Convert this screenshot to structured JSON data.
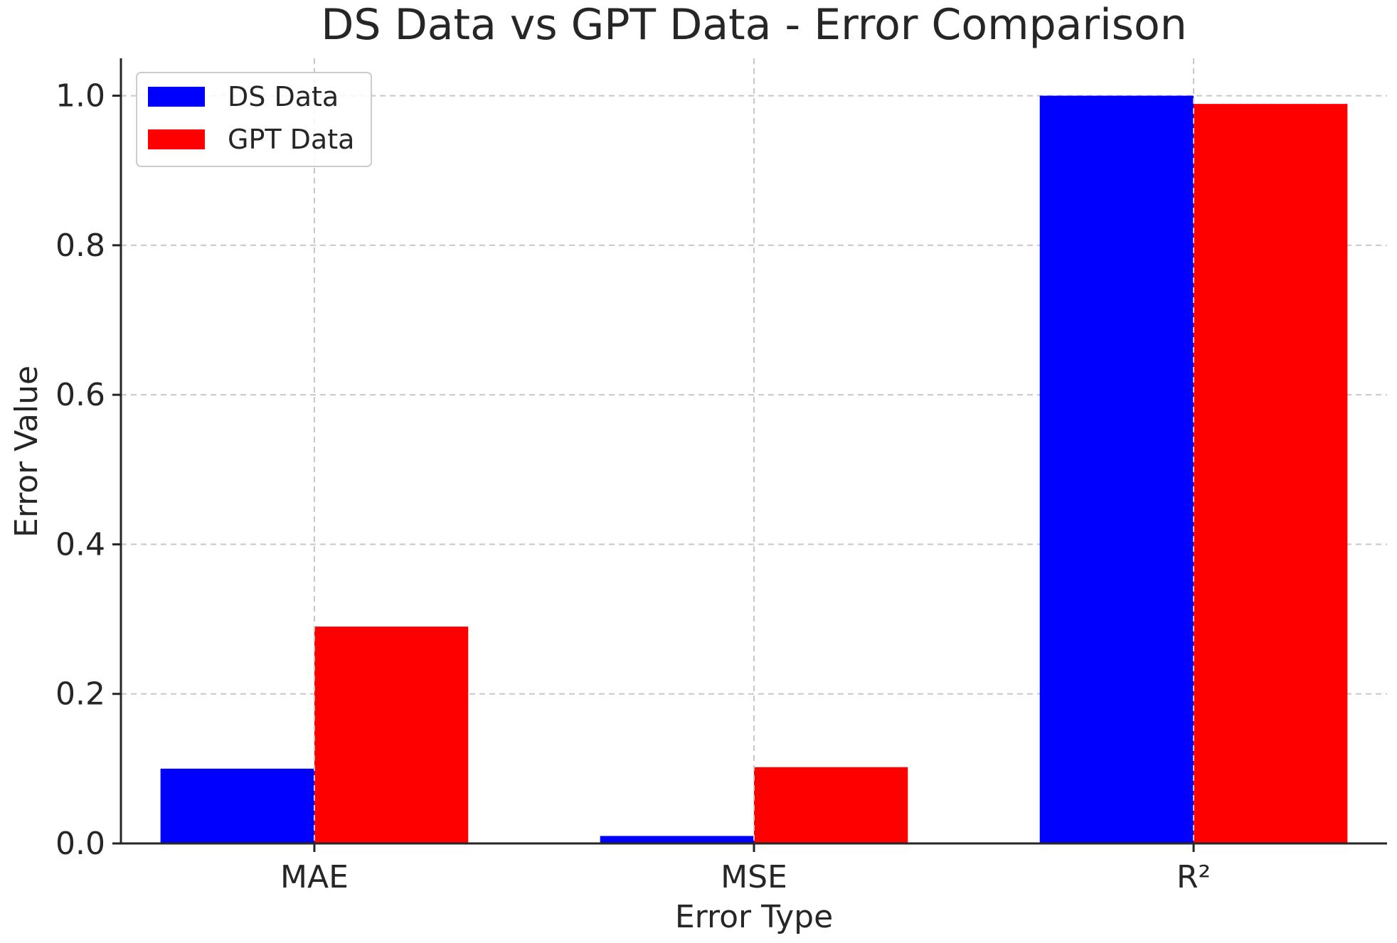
{
  "chart_data": {
    "type": "bar",
    "title": "DS Data vs GPT Data - Error Comparison",
    "xlabel": "Error Type",
    "ylabel": "Error Value",
    "categories": [
      "MAE",
      "MSE",
      "R²"
    ],
    "series": [
      {
        "name": "DS Data",
        "color": "#0000ff",
        "values": [
          0.1,
          0.01,
          1.0
        ]
      },
      {
        "name": "GPT Data",
        "color": "#ff0000",
        "values": [
          0.29,
          0.102,
          0.989
        ]
      }
    ],
    "ylim": [
      0,
      1.05
    ],
    "yticks": [
      "0.0",
      "0.2",
      "0.4",
      "0.6",
      "0.8",
      "1.0"
    ],
    "grid": true,
    "legend_position": "top-left"
  }
}
